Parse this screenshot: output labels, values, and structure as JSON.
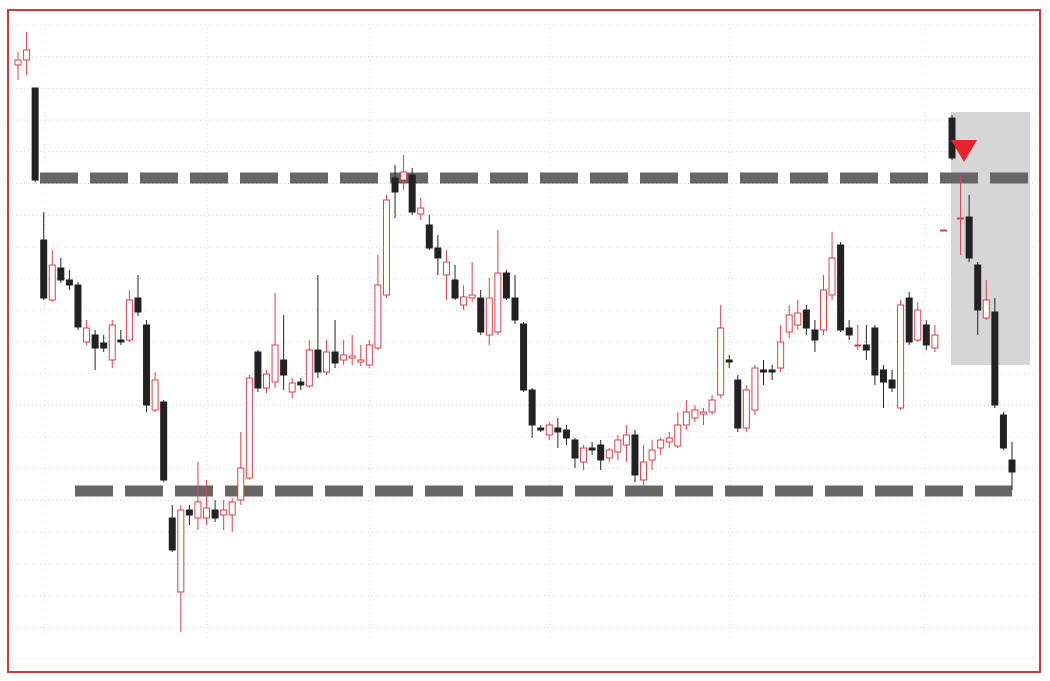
{
  "chart_data": {
    "type": "candlestick",
    "open": [
      595,
      600,
      572,
      420,
      360,
      392,
      380,
      375,
      318,
      325,
      317,
      300,
      320,
      320,
      362,
      335,
      250,
      258,
      142,
      68,
      150,
      142,
      142,
      150,
      145,
      145,
      160,
      182,
      308,
      272,
      278,
      300,
      268,
      278,
      274,
      310,
      288,
      308,
      300,
      302,
      298,
      295,
      312,
      365,
      482,
      480,
      485,
      446,
      435,
      412,
      385,
      380,
      355,
      362,
      362,
      325,
      328,
      387,
      362,
      336,
      270,
      232,
      225,
      232,
      230,
      220,
      198,
      212,
      215,
      202,
      208,
      215,
      225,
      180,
      200,
      212,
      218,
      214,
      235,
      242,
      246,
      248,
      265,
      300,
      280,
      232,
      250,
      290,
      290,
      292,
      328,
      335,
      350,
      330,
      330,
      365,
      415,
      332,
      315,
      315,
      332,
      290,
      280,
      252,
      362,
      320,
      335,
      312,
      430,
      542,
      442,
      443,
      395,
      342,
      348,
      245,
      200
    ],
    "high": [
      608,
      628,
      572,
      448,
      410,
      402,
      390,
      378,
      340,
      330,
      325,
      340,
      330,
      370,
      385,
      340,
      288,
      260,
      155,
      155,
      155,
      198,
      180,
      160,
      160,
      162,
      228,
      285,
      310,
      290,
      367,
      345,
      282,
      282,
      320,
      385,
      320,
      340,
      320,
      325,
      315,
      320,
      405,
      465,
      495,
      505,
      492,
      462,
      445,
      425,
      410,
      395,
      375,
      398,
      370,
      382,
      430,
      390,
      385,
      338,
      272,
      235,
      238,
      242,
      235,
      222,
      215,
      218,
      220,
      212,
      225,
      235,
      230,
      215,
      220,
      222,
      228,
      248,
      260,
      255,
      252,
      265,
      355,
      305,
      285,
      275,
      295,
      300,
      295,
      335,
      355,
      360,
      355,
      340,
      385,
      428,
      418,
      340,
      335,
      335,
      335,
      295,
      290,
      360,
      368,
      358,
      340,
      335,
      430,
      545,
      485,
      465,
      398,
      380,
      362,
      248,
      218
    ],
    "low": [
      580,
      585,
      478,
      360,
      358,
      377,
      370,
      330,
      315,
      290,
      308,
      292,
      315,
      318,
      344,
      248,
      248,
      178,
      108,
      28,
      135,
      130,
      135,
      138,
      130,
      128,
      155,
      180,
      268,
      267,
      272,
      270,
      262,
      270,
      272,
      282,
      285,
      292,
      295,
      295,
      294,
      292,
      310,
      362,
      442,
      470,
      445,
      440,
      410,
      385,
      360,
      360,
      350,
      358,
      325,
      315,
      325,
      360,
      336,
      268,
      222,
      228,
      220,
      212,
      215,
      192,
      190,
      205,
      190,
      198,
      200,
      198,
      178,
      175,
      190,
      205,
      212,
      212,
      230,
      238,
      235,
      245,
      262,
      292,
      228,
      228,
      245,
      275,
      280,
      288,
      322,
      330,
      325,
      308,
      325,
      360,
      328,
      320,
      310,
      300,
      275,
      252,
      268,
      250,
      315,
      318,
      310,
      308,
      430,
      500,
      405,
      398,
      325,
      340,
      252,
      210,
      170
    ],
    "close": [
      600,
      610,
      480,
      362,
      395,
      380,
      375,
      333,
      332,
      312,
      312,
      335,
      318,
      360,
      348,
      255,
      280,
      180,
      110,
      150,
      145,
      158,
      152,
      142,
      150,
      158,
      192,
      282,
      272,
      286,
      315,
      285,
      277,
      275,
      310,
      288,
      308,
      297,
      305,
      304,
      300,
      315,
      375,
      460,
      468,
      488,
      448,
      452,
      412,
      402,
      398,
      362,
      363,
      365,
      328,
      362,
      387,
      362,
      340,
      270,
      235,
      230,
      235,
      228,
      222,
      202,
      212,
      210,
      200,
      210,
      220,
      225,
      185,
      198,
      210,
      220,
      222,
      235,
      248,
      250,
      248,
      260,
      332,
      298,
      232,
      270,
      292,
      288,
      288,
      318,
      345,
      347,
      332,
      320,
      370,
      402,
      330,
      325,
      315,
      310,
      285,
      278,
      272,
      355,
      318,
      350,
      315,
      325,
      430,
      502,
      442,
      402,
      350,
      360,
      255,
      212,
      188
    ],
    "ylim": [
      0,
      650
    ],
    "levels": [
      482,
      169
    ],
    "up_color": "#d9434a",
    "down_color": "#222222",
    "level_color": "#666666",
    "grid": true
  }
}
